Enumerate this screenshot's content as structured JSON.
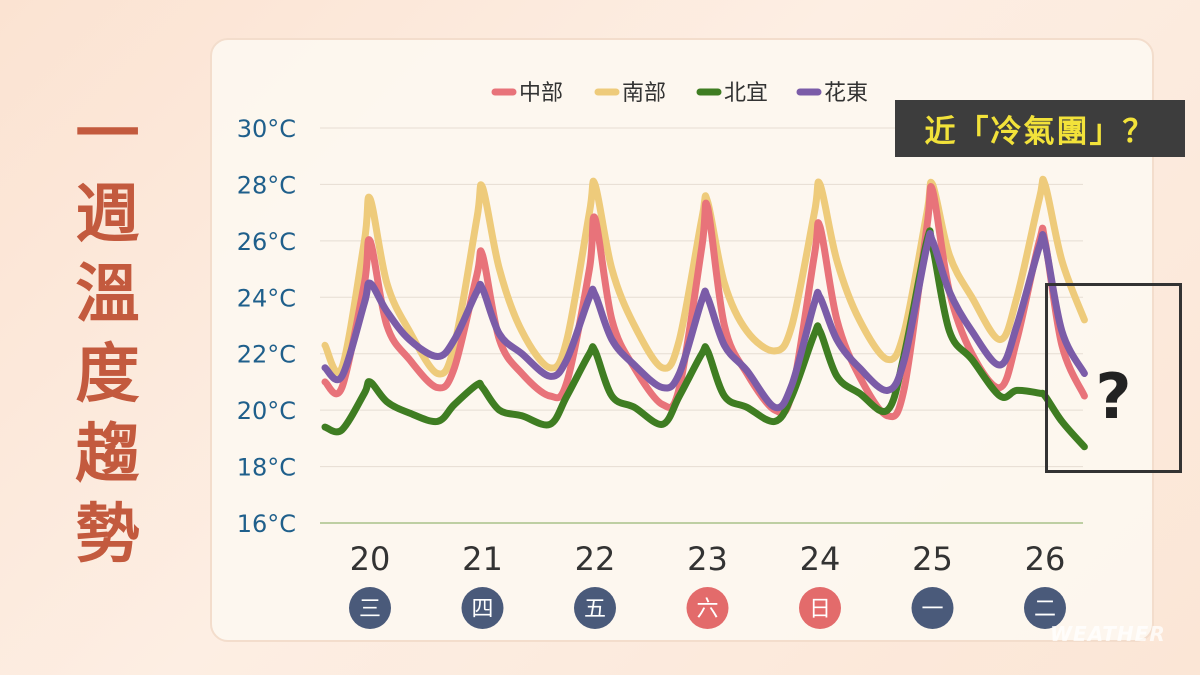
{
  "title_chars": [
    "一",
    "週",
    "溫",
    "度",
    "趨",
    "勢"
  ],
  "callout": "近「冷氣團」？",
  "question": "?",
  "watermark": "WEATHER",
  "colors": {
    "title": "#c35a3e",
    "axis_text": "#1f5f8b",
    "weekday_bg": "#4a5a7a",
    "weekend_bg": "#e36b6b",
    "callout_bg": "#3d3d3d",
    "callout_text": "#f2e23a"
  },
  "chart_data": {
    "type": "line",
    "ylim": [
      16,
      30
    ],
    "yticks": [
      "16°C",
      "18°C",
      "20°C",
      "22°C",
      "24°C",
      "26°C",
      "28°C",
      "30°C"
    ],
    "categories": [
      "20",
      "21",
      "22",
      "23",
      "24",
      "25",
      "26"
    ],
    "weekdays": [
      "三",
      "四",
      "五",
      "六",
      "日",
      "一",
      "二"
    ],
    "weekend": [
      false,
      false,
      false,
      true,
      true,
      false,
      false
    ],
    "legend_position": "top",
    "grid": true,
    "x": [
      19.6,
      19.75,
      19.95,
      20.0,
      20.15,
      20.35,
      20.6,
      20.75,
      20.95,
      21.0,
      21.15,
      21.35,
      21.6,
      21.75,
      21.95,
      22.0,
      22.15,
      22.35,
      22.6,
      22.75,
      22.95,
      23.0,
      23.15,
      23.35,
      23.6,
      23.75,
      23.95,
      24.0,
      24.15,
      24.35,
      24.6,
      24.75,
      24.95,
      25.0,
      25.15,
      25.35,
      25.6,
      25.75,
      25.95,
      26.0,
      26.15,
      26.35
    ],
    "series": [
      {
        "name": "中部",
        "color": "#e8737a",
        "values": [
          21.0,
          20.8,
          24.5,
          26.0,
          23.0,
          21.8,
          20.8,
          21.5,
          24.8,
          25.5,
          22.5,
          21.3,
          20.5,
          21.0,
          25.0,
          26.8,
          23.2,
          21.5,
          20.2,
          20.8,
          25.8,
          27.2,
          23.0,
          21.3,
          20.0,
          20.6,
          25.5,
          26.5,
          23.2,
          21.2,
          19.8,
          20.8,
          26.5,
          27.8,
          24.2,
          22.0,
          20.8,
          22.5,
          26.0,
          26.0,
          22.3,
          20.5
        ]
      },
      {
        "name": "南部",
        "color": "#eecb7b",
        "values": [
          22.3,
          21.5,
          26.0,
          27.5,
          24.5,
          22.8,
          21.3,
          22.3,
          26.8,
          27.9,
          25.0,
          22.8,
          21.5,
          22.5,
          27.0,
          28.0,
          25.0,
          23.0,
          21.5,
          22.5,
          26.8,
          27.4,
          24.5,
          22.8,
          22.1,
          23.0,
          27.0,
          28.0,
          25.3,
          23.2,
          21.8,
          22.8,
          27.0,
          28.0,
          25.5,
          24.0,
          22.5,
          24.0,
          27.5,
          28.0,
          25.3,
          23.2
        ]
      },
      {
        "name": "北宜",
        "color": "#3f7d22",
        "values": [
          19.4,
          19.3,
          20.6,
          21.0,
          20.3,
          19.9,
          19.6,
          20.2,
          20.9,
          20.8,
          20.0,
          19.8,
          19.5,
          20.5,
          22.0,
          22.1,
          20.5,
          20.1,
          19.5,
          20.5,
          22.0,
          22.1,
          20.5,
          20.1,
          19.6,
          20.5,
          22.7,
          22.8,
          21.2,
          20.6,
          20.0,
          22.0,
          26.0,
          25.8,
          22.8,
          21.8,
          20.5,
          20.7,
          20.6,
          20.5,
          19.6,
          18.7
        ]
      },
      {
        "name": "花東",
        "color": "#7b5ca8",
        "values": [
          21.5,
          21.2,
          23.8,
          24.5,
          23.5,
          22.5,
          21.9,
          22.5,
          24.2,
          24.3,
          22.7,
          22.0,
          21.2,
          21.8,
          24.0,
          24.1,
          22.5,
          21.6,
          20.8,
          21.3,
          23.9,
          24.0,
          22.3,
          21.4,
          20.1,
          20.9,
          23.8,
          24.0,
          22.5,
          21.5,
          20.7,
          21.8,
          25.8,
          26.0,
          24.2,
          22.8,
          21.6,
          23.0,
          25.8,
          25.9,
          22.8,
          21.3
        ]
      }
    ]
  }
}
